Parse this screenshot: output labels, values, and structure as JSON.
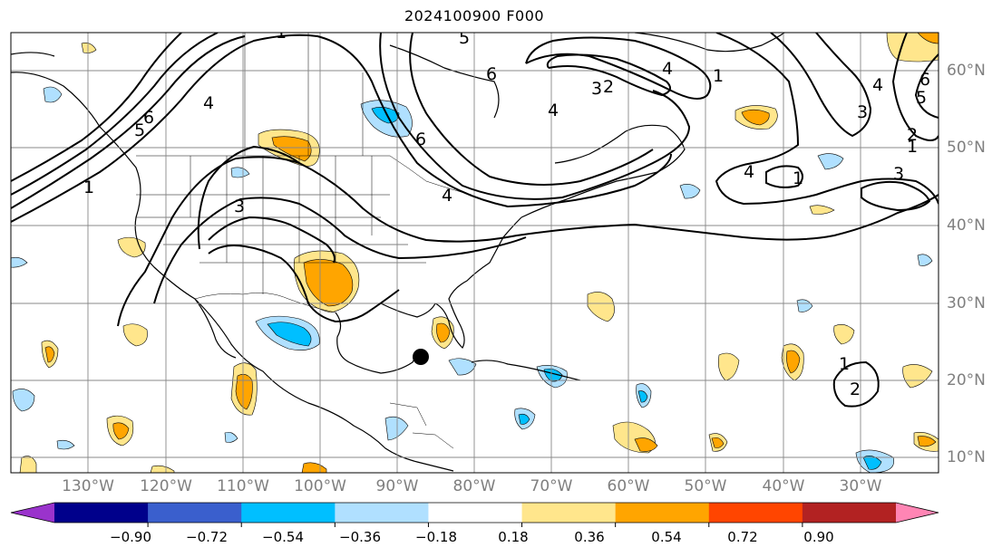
{
  "title": "2024100900 F000",
  "longitude_labels": [
    "130°W",
    "120°W",
    "110°W",
    "100°W",
    "90°W",
    "80°W",
    "70°W",
    "60°W",
    "50°W",
    "40°W",
    "30°W"
  ],
  "latitude_labels": [
    "60°N",
    "50°N",
    "40°N",
    "30°N",
    "20°N",
    "10°N"
  ],
  "colorbar": {
    "ticks": [
      "−0.90",
      "−0.72",
      "−0.54",
      "−0.36",
      "−0.18",
      "0.18",
      "0.36",
      "0.54",
      "0.72",
      "0.90"
    ],
    "colors": [
      "#9a33cc",
      "#00008b",
      "#3a5fcd",
      "#00bfff",
      "#b0e0ff",
      "#ffffff",
      "#ffe68c",
      "#ffa500",
      "#ff4500",
      "#b22222",
      "#ff85b4"
    ]
  },
  "contour_labels": [
    "1",
    "5",
    "6",
    "4",
    "1",
    "3",
    "6",
    "4",
    "5",
    "6",
    "4",
    "1",
    "4",
    "3",
    "1",
    "3",
    "6",
    "5",
    "4",
    "1",
    "2",
    "1",
    "2",
    "2",
    "4",
    "3"
  ],
  "marker": {
    "name": "black-dot"
  }
}
